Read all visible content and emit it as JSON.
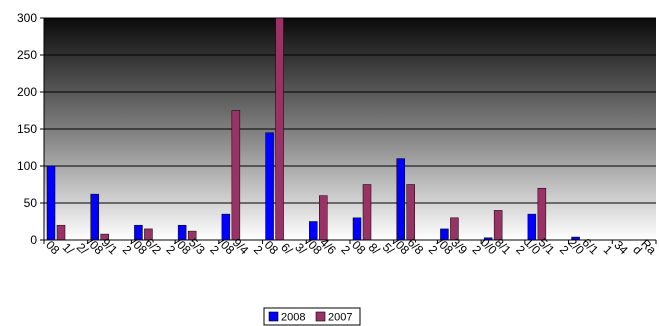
{
  "chart_data": {
    "type": "bar",
    "ylim": [
      0,
      300
    ],
    "yticks": [
      "0",
      "50",
      "100",
      "150",
      "200",
      "250",
      "300"
    ],
    "grid": true,
    "legend_position": "bottom",
    "categories": [
      [
        "2/",
        "1/",
        "08"
      ],
      [
        "2",
        "9/1",
        "/08"
      ],
      [
        "2",
        "6/2",
        "/08"
      ],
      [
        "2",
        "5/3",
        "/08"
      ],
      [
        "2",
        "9/4",
        "/08"
      ],
      [
        "3/",
        "6/",
        "08"
      ],
      [
        "2",
        "4/6",
        "/08"
      ],
      [
        "5/",
        "8/",
        "08"
      ],
      [
        "2",
        "6/8",
        "/08"
      ],
      [
        "2",
        "3/9",
        "/08"
      ],
      [
        "2",
        "8/1",
        "0/0"
      ],
      [
        "2",
        "5/1",
        "1/0"
      ],
      [
        "1",
        "6/1",
        "2/0"
      ],
      [
        "Ra",
        "d",
        "34"
      ]
    ],
    "series": [
      {
        "name": "2008",
        "color": "#0000ff",
        "values": [
          100,
          62,
          20,
          20,
          35,
          145,
          25,
          30,
          110,
          15,
          3,
          35,
          4,
          0
        ]
      },
      {
        "name": "2007",
        "color": "#993366",
        "values": [
          20,
          8,
          15,
          12,
          175,
          300,
          60,
          75,
          75,
          30,
          40,
          70,
          0,
          0
        ]
      }
    ]
  }
}
